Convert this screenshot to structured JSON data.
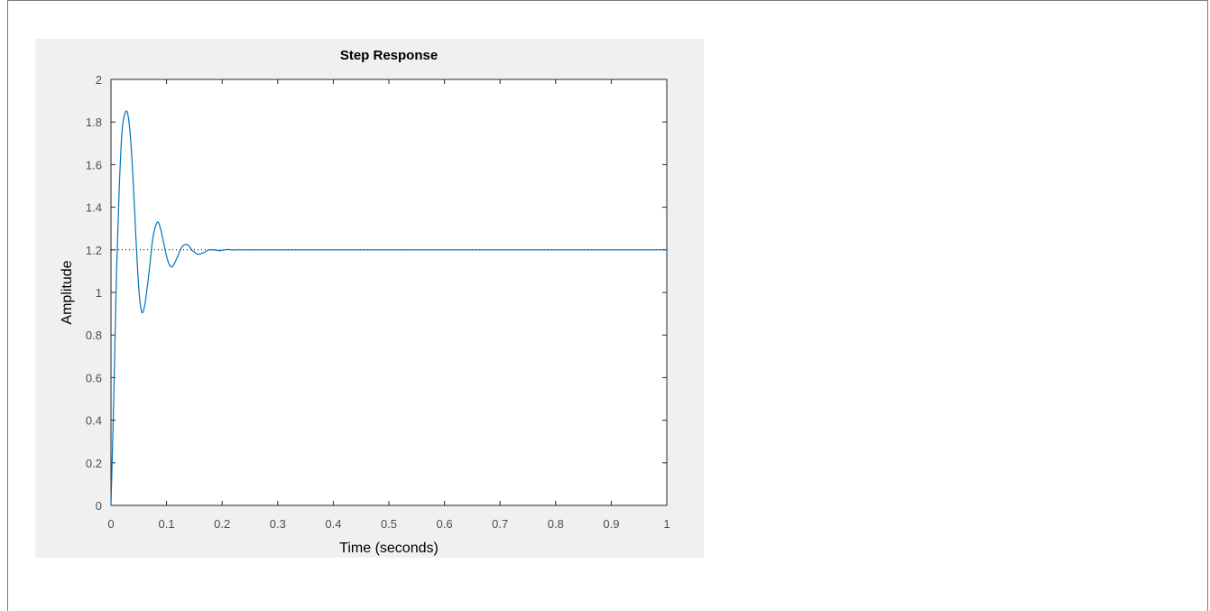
{
  "chart_data": {
    "type": "line",
    "title": "Step Response",
    "xlabel": "Time (seconds)",
    "ylabel": "Amplitude",
    "xlim": [
      0,
      1
    ],
    "ylim": [
      0,
      2
    ],
    "xticks": [
      0,
      0.1,
      0.2,
      0.3,
      0.4,
      0.5,
      0.6,
      0.7,
      0.8,
      0.9,
      1
    ],
    "xtick_labels": [
      "0",
      "0.1",
      "0.2",
      "0.3",
      "0.4",
      "0.5",
      "0.6",
      "0.7",
      "0.8",
      "0.9",
      "1"
    ],
    "yticks": [
      0,
      0.2,
      0.4,
      0.6,
      0.8,
      1,
      1.2,
      1.4,
      1.6,
      1.8,
      2
    ],
    "ytick_labels": [
      "0",
      "0.2",
      "0.4",
      "0.6",
      "0.8",
      "1",
      "1.2",
      "1.4",
      "1.6",
      "1.8",
      "2"
    ],
    "grid": false,
    "series_color": "#0072bd",
    "reference_line": {
      "y": 1.2,
      "style": "dotted",
      "color": "#000000"
    },
    "series": [
      {
        "x": [
          0,
          0.005,
          0.01,
          0.015,
          0.02,
          0.025,
          0.03,
          0.035,
          0.04,
          0.045,
          0.05,
          0.055,
          0.06,
          0.065,
          0.07,
          0.075,
          0.08,
          0.085,
          0.09,
          0.095,
          0.1,
          0.105,
          0.11,
          0.115,
          0.12,
          0.125,
          0.13,
          0.135,
          0.14,
          0.145,
          0.15,
          0.155,
          0.16,
          0.165,
          0.17,
          0.175,
          0.18,
          0.185,
          0.19,
          0.195,
          0.2,
          0.205,
          0.21,
          0.215,
          0.22,
          0.225,
          0.23,
          0.235,
          0.24,
          0.245,
          0.25,
          0.26,
          0.27,
          0.28,
          0.3,
          0.4,
          0.5,
          0.6,
          0.7,
          0.8,
          0.9,
          1
        ],
        "y": [
          0,
          0.5,
          1.1,
          1.5,
          1.76,
          1.84,
          1.84,
          1.73,
          1.52,
          1.25,
          1.02,
          0.91,
          0.93,
          1.02,
          1.13,
          1.25,
          1.31,
          1.33,
          1.29,
          1.23,
          1.17,
          1.13,
          1.12,
          1.14,
          1.17,
          1.2,
          1.22,
          1.225,
          1.22,
          1.2,
          1.19,
          1.18,
          1.18,
          1.185,
          1.19,
          1.2,
          1.2,
          1.2,
          1.198,
          1.196,
          1.198,
          1.2,
          1.202,
          1.2,
          1.199,
          1.2,
          1.2,
          1.2,
          1.2,
          1.2,
          1.2,
          1.2,
          1.2,
          1.2,
          1.2,
          1.2,
          1.2,
          1.2,
          1.2,
          1.2,
          1.2,
          1.2
        ]
      }
    ]
  }
}
